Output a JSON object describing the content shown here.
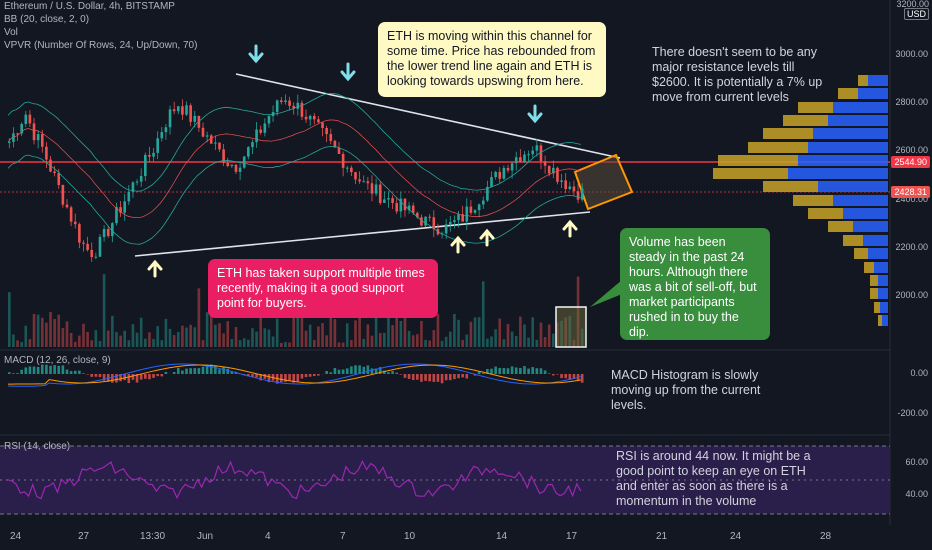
{
  "header": {
    "symbol_line": "Ethereum / U.S. Dollar, 4h, BITSTAMP",
    "bb": "BB (20, close, 2, 0)",
    "vol": "Vol",
    "vpvr": "VPVR (Number Of Rows, 24, Up/Down, 70)",
    "macd": "MACD (12, 26, close, 9)",
    "rsi": "RSI (14, close)",
    "corner_top": "3200.00",
    "corner_cur": "USD"
  },
  "annotations": {
    "channel": "ETH is moving within this channel for some time. Price has rebounded from the lower trend line again and ETH is looking towards upswing from here.",
    "resistance": "There doesn't seem to be any major resistance levels till $2600. It is potentially a 7% up move from current levels",
    "support": "ETH has taken support multiple times recently, making it a good support point for buyers.",
    "volume": "Volume has been steady in the past 24 hours. Although there was a bit of sell-off, but market participants rushed in to buy the dip.",
    "macd": "MACD Histogram is slowly moving up from the current levels.",
    "rsi": "RSI is around 44 now. It might be a good point to keep an eye on ETH and enter as soon as there is a momentum in the volume"
  },
  "price_tags": {
    "resistance": "2544.90",
    "current": "2428.31"
  },
  "colors": {
    "up": "#26a69a",
    "down": "#ef5350",
    "resistance": "#f23645",
    "annot_yellow": "#fff9c4",
    "annot_red": "#e91e63",
    "annot_green": "#388e3c",
    "rsi_bg": "#2a1e4a",
    "rsi_line": "#9c27b0",
    "macd_line": "#2962ff",
    "signal_line": "#ff9800",
    "vpvr_up": "#2962ff",
    "vpvr_down": "#c9a227"
  },
  "chart_data": {
    "type": "candlestick",
    "price_axis": {
      "ticks": [
        3000,
        2800,
        2600,
        2400,
        2200,
        2000
      ],
      "range": [
        1800,
        3200
      ]
    },
    "macd_axis": {
      "ticks": [
        "0.00",
        "-200.00"
      ]
    },
    "rsi_axis": {
      "ticks": [
        "60.00",
        "40.00"
      ]
    },
    "x_ticks": [
      "24",
      "27",
      "13:30",
      "Jun",
      "4",
      "7",
      "10",
      "14",
      "17",
      "21",
      "24",
      "28"
    ],
    "resistance_level": 2544.9,
    "current_price": 2428.31,
    "close_series": [
      2640,
      2700,
      2760,
      2680,
      2620,
      2540,
      2460,
      2380,
      2300,
      2220,
      2180,
      2200,
      2260,
      2320,
      2380,
      2440,
      2500,
      2560,
      2620,
      2700,
      2760,
      2800,
      2760,
      2720,
      2680,
      2640,
      2600,
      2560,
      2540,
      2580,
      2620,
      2680,
      2740,
      2780,
      2820,
      2800,
      2780,
      2740,
      2700,
      2660,
      2620,
      2580,
      2540,
      2500,
      2460,
      2440,
      2420,
      2400,
      2380,
      2360,
      2340,
      2320,
      2300,
      2290,
      2280,
      2300,
      2320,
      2360,
      2400,
      2440,
      2480,
      2520,
      2560,
      2580,
      2600,
      2620,
      2580,
      2540,
      2500,
      2470,
      2440,
      2428
    ],
    "rsi_value": 44
  }
}
